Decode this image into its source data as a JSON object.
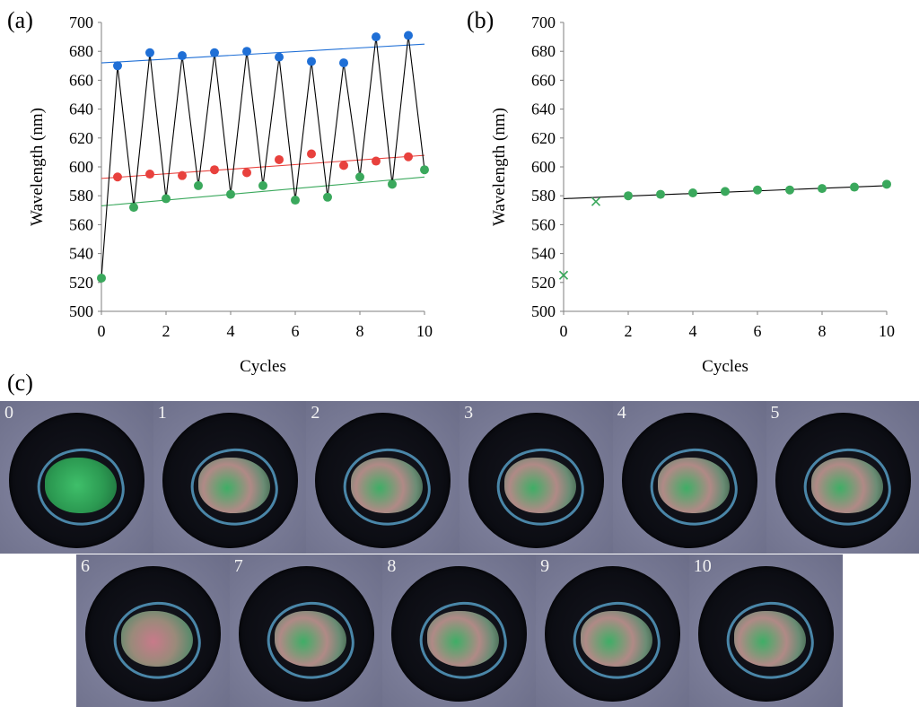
{
  "panels": {
    "a": "(a)",
    "b": "(b)",
    "c": "(c)"
  },
  "chart_data": [
    {
      "type": "scatter",
      "xlabel": "Cycles",
      "ylabel": "Wavelength (nm)",
      "xlim": [
        0,
        10
      ],
      "ylim": [
        500,
        700
      ],
      "xticks": [
        0,
        2,
        4,
        6,
        8,
        10
      ],
      "yticks": [
        500,
        520,
        540,
        560,
        580,
        600,
        620,
        640,
        660,
        680,
        700
      ],
      "grid": false,
      "series": [
        {
          "color": "#1f6fd6",
          "marker": "circle",
          "x": [
            0.5,
            1.5,
            2.5,
            3.5,
            4.5,
            5.5,
            6.5,
            7.5,
            8.5,
            9.5
          ],
          "y": [
            670,
            679,
            677,
            679,
            680,
            676,
            673,
            672,
            690,
            691
          ]
        },
        {
          "color": "#e8413d",
          "marker": "circle",
          "x": [
            0.5,
            1.5,
            2.5,
            3.5,
            4.5,
            5.5,
            6.5,
            7.5,
            8.5,
            9.5
          ],
          "y": [
            593,
            595,
            594,
            598,
            596,
            605,
            609,
            601,
            604,
            607
          ]
        },
        {
          "color": "#3aa85c",
          "marker": "circle",
          "x": [
            0,
            1,
            2,
            3,
            4,
            5,
            6,
            7,
            8,
            9,
            10
          ],
          "y": [
            523,
            572,
            578,
            587,
            581,
            587,
            577,
            579,
            593,
            588,
            598
          ]
        },
        {
          "color": "#000000",
          "type": "line",
          "marker": "none",
          "x": [
            0,
            0.5,
            1,
            1.5,
            2,
            2.5,
            3,
            3.5,
            4,
            4.5,
            5,
            5.5,
            6,
            6.5,
            7,
            7.5,
            8,
            8.5,
            9,
            9.5,
            10
          ],
          "y": [
            523,
            670,
            572,
            679,
            578,
            677,
            587,
            679,
            581,
            680,
            587,
            676,
            577,
            673,
            579,
            672,
            593,
            690,
            588,
            691,
            598
          ]
        }
      ],
      "trendlines": [
        {
          "color": "#1f6fd6",
          "x": [
            0,
            10
          ],
          "y": [
            672,
            685
          ]
        },
        {
          "color": "#e8413d",
          "x": [
            0,
            10
          ],
          "y": [
            592,
            608
          ]
        },
        {
          "color": "#3aa85c",
          "x": [
            0,
            10
          ],
          "y": [
            573,
            593
          ]
        }
      ]
    },
    {
      "type": "scatter",
      "xlabel": "Cycles",
      "ylabel": "Wavelength (nm)",
      "xlim": [
        0,
        10
      ],
      "ylim": [
        500,
        700
      ],
      "xticks": [
        0,
        2,
        4,
        6,
        8,
        10
      ],
      "yticks": [
        500,
        520,
        540,
        560,
        580,
        600,
        620,
        640,
        660,
        680,
        700
      ],
      "grid": false,
      "series": [
        {
          "color": "#3aa85c",
          "marker": "circle",
          "x": [
            2,
            3,
            4,
            5,
            6,
            7,
            8,
            9,
            10
          ],
          "y": [
            580,
            581,
            582,
            583,
            584,
            584,
            585,
            586,
            588
          ]
        },
        {
          "color": "#3aa85c",
          "marker": "x",
          "x": [
            0,
            1
          ],
          "y": [
            525,
            576
          ]
        }
      ],
      "trendlines": [
        {
          "color": "#000000",
          "x": [
            0,
            10
          ],
          "y": [
            578,
            587
          ]
        }
      ]
    }
  ],
  "photos": [
    {
      "label": "0",
      "tint": "green"
    },
    {
      "label": "1",
      "tint": "mixed"
    },
    {
      "label": "2",
      "tint": "mixed"
    },
    {
      "label": "3",
      "tint": "mixed"
    },
    {
      "label": "4",
      "tint": "mixed"
    },
    {
      "label": "5",
      "tint": "mixed"
    },
    {
      "label": "6",
      "tint": "pink"
    },
    {
      "label": "7",
      "tint": "mixed"
    },
    {
      "label": "8",
      "tint": "mixed"
    },
    {
      "label": "9",
      "tint": "mixed"
    },
    {
      "label": "10",
      "tint": "mixed"
    }
  ]
}
